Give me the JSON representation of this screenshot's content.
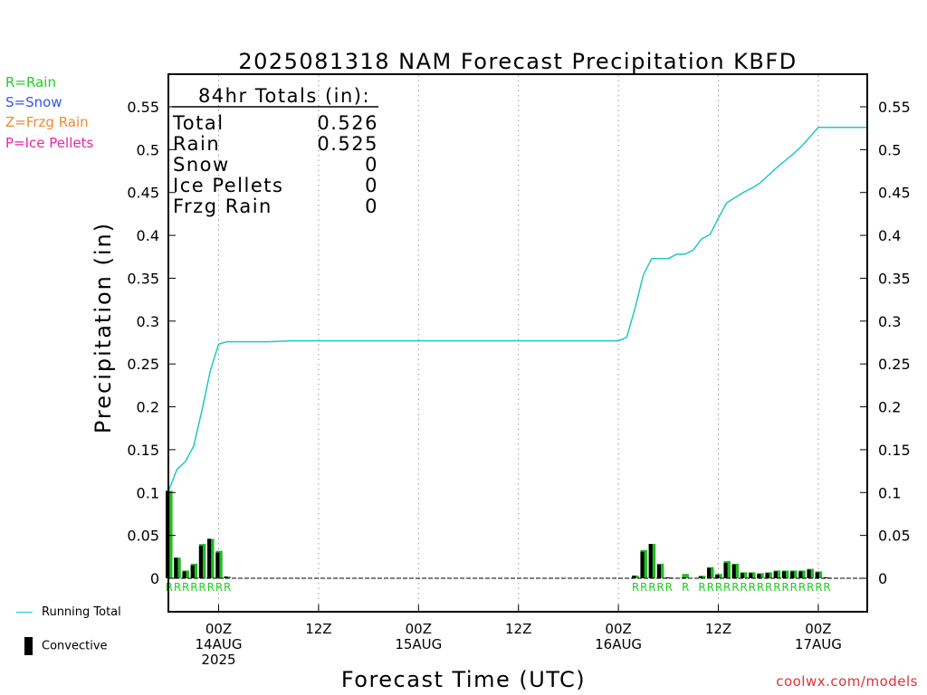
{
  "chart_data": {
    "type": "bar+line",
    "title": "2025081318 NAM Forecast Precipitation KBFD",
    "xlabel": "Forecast Time (UTC)",
    "ylabel": "Precipitation (in)",
    "ylim": [
      0,
      0.58
    ],
    "yticks": [
      "0",
      "0.05",
      "0.1",
      "0.15",
      "0.2",
      "0.25",
      "0.3",
      "0.35",
      "0.4",
      "0.45",
      "0.5",
      "0.55"
    ],
    "x_units": "forecast hour",
    "xlim": [
      -3,
      84
    ],
    "xticks": [
      {
        "hour": 6,
        "lines": [
          "00Z",
          "14AUG",
          "2025"
        ]
      },
      {
        "hour": 18,
        "lines": [
          "12Z"
        ]
      },
      {
        "hour": 30,
        "lines": [
          "00Z",
          "15AUG"
        ]
      },
      {
        "hour": 42,
        "lines": [
          "12Z"
        ]
      },
      {
        "hour": 54,
        "lines": [
          "00Z",
          "16AUG"
        ]
      },
      {
        "hour": 66,
        "lines": [
          "12Z"
        ]
      },
      {
        "hour": 78,
        "lines": [
          "00Z",
          "17AUG"
        ]
      }
    ],
    "grid": "vertical dotted",
    "totals_box": {
      "heading": "84hr Totals (in):",
      "rows": [
        {
          "label": "Total",
          "value": "0.526"
        },
        {
          "label": "Rain",
          "value": "0.525"
        },
        {
          "label": "Snow",
          "value": "0"
        },
        {
          "label": "Ice Pellets",
          "value": "0"
        },
        {
          "label": "Frzg Rain",
          "value": "0"
        }
      ]
    },
    "ptype_key": [
      {
        "text": "R=Rain",
        "color": "#22cc22"
      },
      {
        "text": "S=Snow",
        "color": "#3355ee"
      },
      {
        "text": "Z=Frzg Rain",
        "color": "#f08a30"
      },
      {
        "text": "P=Ice Pellets",
        "color": "#ee22aa"
      }
    ],
    "series_legend": [
      {
        "name": "Running Total",
        "color": "#20c8c8",
        "kind": "line"
      },
      {
        "name": "Convective",
        "color": "#000000",
        "kind": "bar"
      }
    ],
    "running_total": {
      "hours": [
        0,
        1,
        2,
        3,
        4,
        5,
        6,
        7,
        8,
        9,
        10,
        12,
        15,
        18,
        21,
        24,
        27,
        30,
        33,
        36,
        39,
        42,
        45,
        48,
        51,
        54,
        55,
        56,
        57,
        58,
        59,
        60,
        61,
        62,
        63,
        64,
        65,
        66,
        67,
        68,
        69,
        70,
        71,
        72,
        73,
        74,
        75,
        76,
        77,
        78,
        79,
        80,
        84
      ],
      "values": [
        0.102,
        0.127,
        0.136,
        0.154,
        0.196,
        0.242,
        0.273,
        0.276,
        0.276,
        0.276,
        0.276,
        0.276,
        0.277,
        0.277,
        0.277,
        0.277,
        0.277,
        0.277,
        0.277,
        0.277,
        0.277,
        0.277,
        0.277,
        0.277,
        0.277,
        0.277,
        0.281,
        0.315,
        0.354,
        0.373,
        0.373,
        0.373,
        0.378,
        0.378,
        0.383,
        0.396,
        0.401,
        0.42,
        0.438,
        0.444,
        0.45,
        0.455,
        0.461,
        0.47,
        0.479,
        0.487,
        0.495,
        0.504,
        0.515,
        0.526,
        0.526,
        0.526,
        0.526
      ]
    },
    "bars": {
      "hours": [
        0,
        1,
        2,
        3,
        4,
        5,
        6,
        7,
        56,
        57,
        58,
        59,
        60,
        61,
        62,
        63,
        64,
        65,
        66,
        67,
        68,
        69,
        70,
        71,
        72,
        73,
        74,
        75,
        76,
        77,
        78,
        79
      ],
      "total": [
        0.102,
        0.024,
        0.009,
        0.017,
        0.04,
        0.046,
        0.032,
        0.002,
        0.003,
        0.033,
        0.04,
        0.017,
        0.001,
        0.0,
        0.005,
        0.0,
        0.003,
        0.013,
        0.005,
        0.02,
        0.017,
        0.007,
        0.007,
        0.006,
        0.007,
        0.009,
        0.009,
        0.009,
        0.009,
        0.011,
        0.008,
        0.001
      ],
      "convective": [
        0.102,
        0.024,
        0.008,
        0.015,
        0.038,
        0.046,
        0.03,
        0.002,
        0.003,
        0.031,
        0.04,
        0.016,
        0.001,
        0.0,
        0.001,
        0.0,
        0.002,
        0.012,
        0.004,
        0.018,
        0.016,
        0.006,
        0.006,
        0.005,
        0.006,
        0.008,
        0.008,
        0.008,
        0.008,
        0.01,
        0.007,
        0.001
      ],
      "ptype": [
        "R",
        "R",
        "R",
        "R",
        "R",
        "R",
        "R",
        "R",
        "R",
        "R",
        "R",
        "R",
        "R",
        "",
        "R",
        "",
        "R",
        "R",
        "R",
        "R",
        "R",
        "R",
        "R",
        "R",
        "R",
        "R",
        "R",
        "R",
        "R",
        "R",
        "R",
        "R"
      ],
      "ptype_color": "#22cc22"
    }
  },
  "credit": "coolwx.com/models"
}
